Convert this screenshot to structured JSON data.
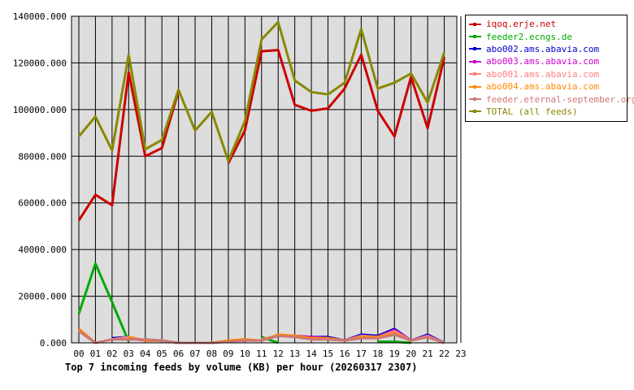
{
  "chart_data": {
    "type": "line",
    "title": "Top 7 incoming feeds by volume (KB) per hour (20260317 2307)",
    "xlabel": "",
    "ylabel": "",
    "x": [
      "00",
      "01",
      "02",
      "03",
      "04",
      "05",
      "06",
      "07",
      "08",
      "09",
      "10",
      "11",
      "12",
      "13",
      "14",
      "15",
      "16",
      "17",
      "18",
      "19",
      "20",
      "21",
      "22",
      "23"
    ],
    "y_ticks": [
      "0.000",
      "20000.000",
      "40000.000",
      "60000.000",
      "80000.000",
      "100000.000",
      "120000.000",
      "140000.000"
    ],
    "ylim": [
      0,
      140000
    ],
    "grid": true,
    "legend_position": "right",
    "series": [
      {
        "name": "iqoq.erje.net",
        "color": "#cc0000",
        "values": [
          52500,
          63500,
          59000,
          116000,
          80000,
          83500,
          108000,
          null,
          null,
          77000,
          91000,
          125000,
          125500,
          102000,
          99500,
          100500,
          109000,
          123500,
          99500,
          88500,
          114000,
          92000,
          122500,
          null
        ]
      },
      {
        "name": "feeder2.ecngs.de",
        "color": "#00aa00",
        "values": [
          12500,
          34000,
          17500,
          500,
          null,
          null,
          null,
          null,
          null,
          null,
          null,
          2500,
          0,
          null,
          null,
          null,
          null,
          null,
          500,
          500,
          0,
          null,
          null,
          null
        ]
      },
      {
        "name": "abo002.ams.abavia.com",
        "color": "#0000cc",
        "values": [
          null,
          null,
          2000,
          2500,
          1000,
          1000,
          null,
          null,
          null,
          null,
          null,
          1500,
          3000,
          3000,
          2500,
          2500,
          1000,
          3500,
          3000,
          6000,
          1000,
          3500,
          0,
          null
        ]
      },
      {
        "name": "abo003.ams.abavia.com",
        "color": "#cc00cc",
        "values": [
          null,
          null,
          1500,
          2000,
          1000,
          1000,
          null,
          null,
          null,
          null,
          null,
          1500,
          3000,
          3000,
          2500,
          2000,
          1000,
          3000,
          2500,
          5500,
          1000,
          3000,
          0,
          null
        ]
      },
      {
        "name": "abo001.ams.abavia.com",
        "color": "#ff7f7f",
        "values": [
          null,
          null,
          1500,
          2500,
          1000,
          1000,
          null,
          null,
          null,
          null,
          null,
          1500,
          3000,
          3000,
          2000,
          2000,
          1000,
          3000,
          2500,
          5000,
          1000,
          3000,
          0,
          null
        ]
      },
      {
        "name": "abo004.ams.abavia.com",
        "color": "#ff8800",
        "values": [
          6000,
          0,
          null,
          2500,
          1000,
          1000,
          0,
          0,
          0,
          1000,
          1500,
          1000,
          3500,
          3000,
          2000,
          2000,
          1000,
          2500,
          2500,
          4000,
          1000,
          2500,
          0,
          null
        ]
      },
      {
        "name": "feeder.eternal-september.org",
        "color": "#cc7777",
        "values": [
          5000,
          0,
          1500,
          1500,
          1500,
          1000,
          0,
          0,
          0,
          500,
          1000,
          1000,
          3000,
          2500,
          1500,
          1500,
          1000,
          2000,
          2000,
          3500,
          1000,
          2500,
          0,
          null
        ]
      },
      {
        "name": "TOTAL (all feeds)",
        "color": "#888800",
        "values": [
          88500,
          97000,
          82500,
          123500,
          83000,
          87000,
          108500,
          91000,
          99000,
          78000,
          95000,
          130000,
          137500,
          112500,
          107500,
          106500,
          111500,
          134500,
          109000,
          111500,
          115500,
          103000,
          124500,
          null
        ]
      }
    ]
  }
}
